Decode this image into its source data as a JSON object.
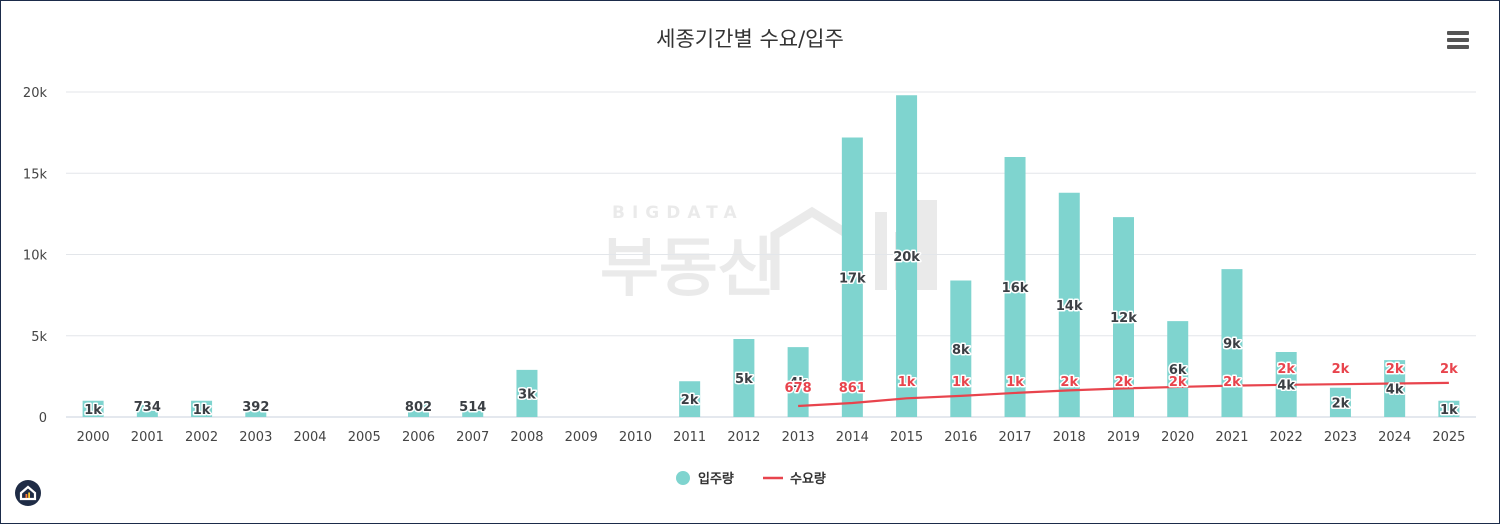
{
  "chart_data": {
    "type": "bar",
    "title": "세종기간별 수요/입주",
    "categories": [
      "2000",
      "2001",
      "2002",
      "2003",
      "2004",
      "2005",
      "2006",
      "2007",
      "2008",
      "2009",
      "2010",
      "2011",
      "2012",
      "2013",
      "2014",
      "2015",
      "2016",
      "2017",
      "2018",
      "2019",
      "2020",
      "2021",
      "2022",
      "2023",
      "2024",
      "2025"
    ],
    "ylim": [
      0,
      20000
    ],
    "yticks": [
      {
        "value": 0,
        "label": "0"
      },
      {
        "value": 5000,
        "label": "5k"
      },
      {
        "value": 10000,
        "label": "10k"
      },
      {
        "value": 15000,
        "label": "15k"
      },
      {
        "value": 20000,
        "label": "20k"
      }
    ],
    "grid": true,
    "legend_position": "bottom-center",
    "series": [
      {
        "name": "입주량",
        "type": "bar",
        "color": "#7fd4cf",
        "values": [
          1000,
          734,
          1000,
          392,
          0,
          0,
          802,
          514,
          2900,
          0,
          0,
          2200,
          4800,
          4300,
          17200,
          19800,
          8400,
          16000,
          13800,
          12300,
          5900,
          9100,
          4000,
          1800,
          3500,
          1000
        ],
        "labels": [
          "1k",
          "734",
          "1k",
          "392",
          "",
          "",
          "802",
          "514",
          "3k",
          "",
          "",
          "2k",
          "5k",
          "4k",
          "17k",
          "20k",
          "8k",
          "16k",
          "14k",
          "12k",
          "6k",
          "9k",
          "4k",
          "2k",
          "4k",
          "1k"
        ]
      },
      {
        "name": "수요량",
        "type": "line",
        "color": "#e8444d",
        "values": [
          null,
          null,
          null,
          null,
          null,
          null,
          null,
          null,
          null,
          null,
          null,
          null,
          null,
          678,
          861,
          1150,
          1300,
          1480,
          1640,
          1760,
          1850,
          1930,
          1980,
          2020,
          2060,
          2100
        ],
        "labels": [
          "",
          "",
          "",
          "",
          "",
          "",
          "",
          "",
          "",
          "",
          "",
          "",
          "",
          "678",
          "861",
          "1k",
          "1k",
          "1k",
          "2k",
          "2k",
          "2k",
          "2k",
          "2k",
          "2k",
          "2k",
          "2k"
        ]
      }
    ]
  },
  "watermark": {
    "top": "BIGDATA",
    "main": "부동산"
  },
  "icons": {
    "menu": "hamburger-menu-icon",
    "home": "home-icon"
  }
}
